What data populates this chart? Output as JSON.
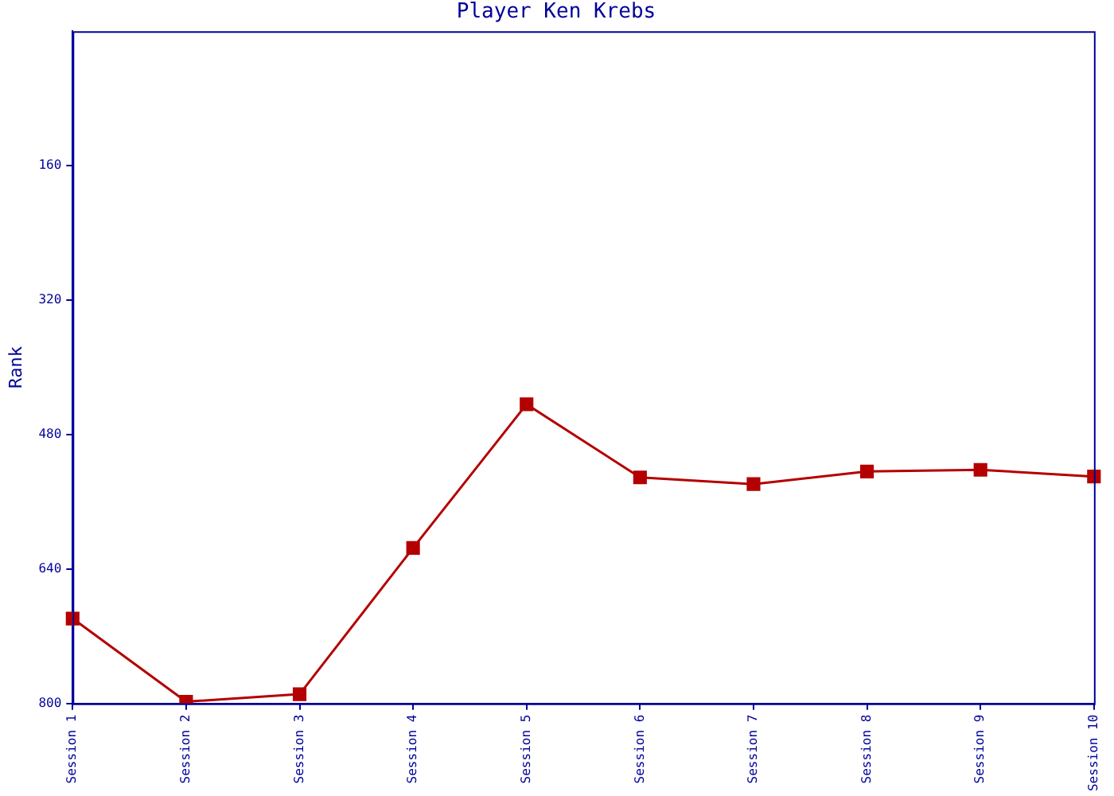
{
  "chart_data": {
    "type": "line",
    "title": "Player Ken Krebs",
    "ylabel": "Rank",
    "categories": [
      "Session 1",
      "Session 2",
      "Session 3",
      "Session 4",
      "Session 5",
      "Session 6",
      "Session 7",
      "Session 8",
      "Session 9",
      "Session 10"
    ],
    "series": [
      {
        "color": "#b40000",
        "values": [
          699,
          798,
          789,
          615,
          444,
          531,
          539,
          524,
          522,
          530
        ]
      }
    ],
    "ylim": [
      800,
      0
    ],
    "yticks": [
      160,
      320,
      480,
      640,
      800
    ],
    "grid": false,
    "legend": false,
    "marker": "square",
    "line_style": "solid"
  }
}
